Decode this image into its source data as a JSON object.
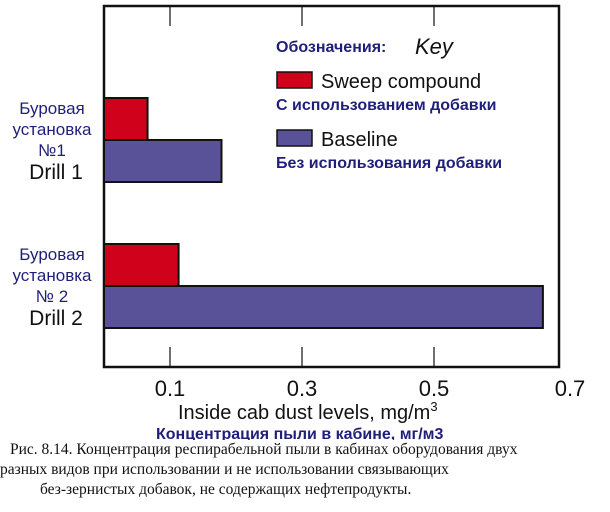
{
  "chart_data": {
    "type": "bar",
    "orientation": "horizontal",
    "categories": [
      {
        "label_ru": "Буровая установка №1",
        "label_ru_lines": [
          "Буровая",
          "установка",
          "№1"
        ],
        "label_en": "Drill 1"
      },
      {
        "label_ru": "Буровая установка №2",
        "label_ru_lines": [
          "Буровая",
          "установка",
          "№ 2"
        ],
        "label_en": "Drill 2"
      }
    ],
    "series": [
      {
        "name": "Sweep compound",
        "name_ru": "С использованием добавки",
        "color": "#d0021b",
        "values": [
          0.066,
          0.113
        ]
      },
      {
        "name": "Baseline",
        "name_ru": "Без использования добавки",
        "color": "#5a5299",
        "values": [
          0.178,
          0.665
        ]
      }
    ],
    "legend_title_ru": "Обозначения:",
    "legend_title_en": "Key",
    "legend_position": "top-right",
    "xlabel": "Inside cab dust levels, mg/m",
    "xlabel_sup": "3",
    "xlabel_ru": "Концентрация пыли в кабине, мг/м3",
    "xticks": [
      0.1,
      0.3,
      0.5,
      0.7
    ],
    "xtick_labels": [
      "0.1",
      "0.3",
      "0.5",
      "0.7"
    ],
    "xlim": [
      0,
      0.69
    ],
    "grid": false
  },
  "caption": [
    "Рис. 8.14. Концентрация респирабельной пыли в кабинах оборудования двух",
    "разных видов при использовании и не использовании связывающих",
    "без-зернистых добавок, не содержащих нефтепродукты."
  ]
}
